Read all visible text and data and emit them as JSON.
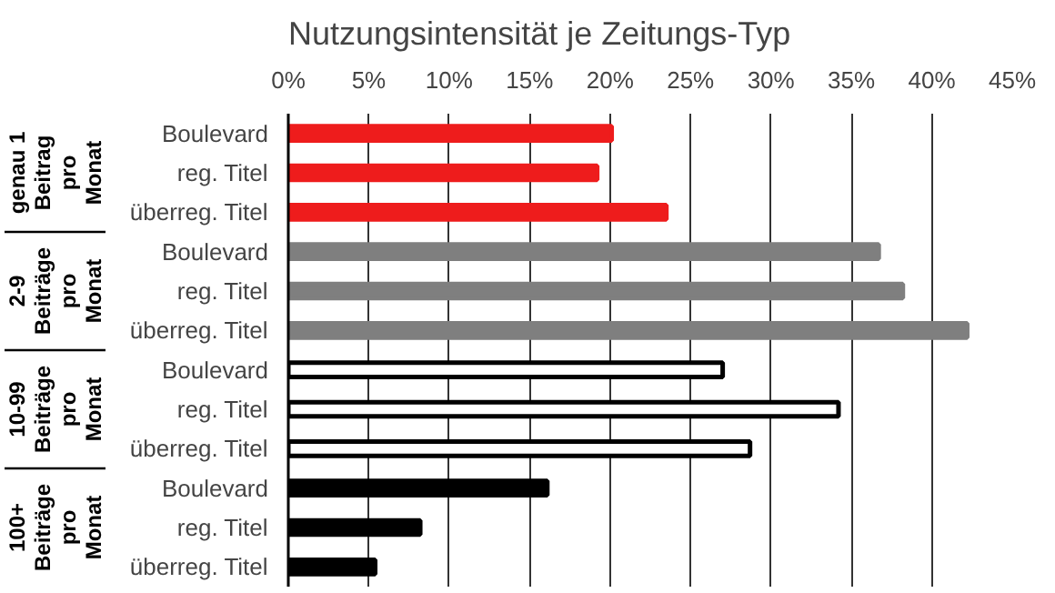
{
  "chart_data": {
    "type": "bar",
    "orientation": "horizontal",
    "title": "Nutzungsintensität je Zeitungs-Typ",
    "categories": [
      "Boulevard",
      "reg. Titel",
      "überreg. Titel",
      "Boulevard",
      "reg. Titel",
      "überreg. Titel",
      "Boulevard",
      "reg. Titel",
      "überreg. Titel",
      "Boulevard",
      "reg. Titel",
      "überreg. Titel"
    ],
    "values": [
      20.1,
      19.2,
      23.5,
      36.7,
      38.2,
      42.2,
      27.0,
      34.2,
      28.7,
      16.1,
      8.2,
      5.4
    ],
    "colors": [
      "#ee1c1c",
      "#ee1c1c",
      "#ee1c1c",
      "#7f7f7f",
      "#7f7f7f",
      "#7f7f7f",
      "#ffffff",
      "#ffffff",
      "#ffffff",
      "#000000",
      "#000000",
      "#000000"
    ],
    "annotations": [
      "genau 1\nBeitrag\npro\nMonat",
      "2-9\nBeiträge\npro\nMonat",
      "10-99\nBeiträge\npro\nMonat",
      "100+\nBeiträge\npro\nMonat"
    ],
    "xlim": [
      0,
      45
    ],
    "xticks": [
      {
        "value": 0,
        "label": "0%"
      },
      {
        "value": 5,
        "label": "5%"
      },
      {
        "value": 10,
        "label": "10%"
      },
      {
        "value": 15,
        "label": "15%"
      },
      {
        "value": 20,
        "label": "20%"
      },
      {
        "value": 25,
        "label": "25%"
      },
      {
        "value": 30,
        "label": "30%"
      },
      {
        "value": 35,
        "label": "35%"
      },
      {
        "value": 40,
        "label": "40%"
      },
      {
        "value": 45,
        "label": "45%"
      }
    ],
    "grid": "x"
  }
}
